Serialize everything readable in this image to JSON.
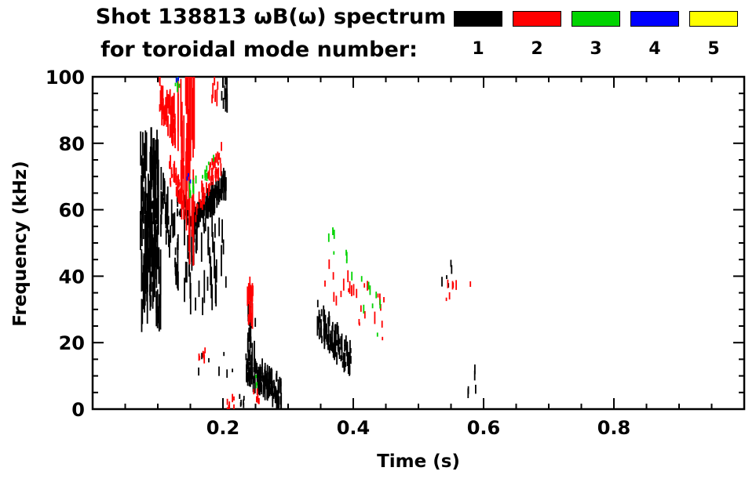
{
  "figure": {
    "background": "#ffffff"
  },
  "chart_data": {
    "type": "scatter",
    "title_line1": "Shot 138813 ωB(ω) spectrum",
    "title_line2": "for toroidal mode number:",
    "xlabel": "Time (s)",
    "ylabel": "Frequency (kHz)",
    "xlim": [
      0.0,
      1.0
    ],
    "ylim": [
      0,
      100
    ],
    "xticks": [
      0.2,
      0.4,
      0.6,
      0.8
    ],
    "xtick_labels": [
      "0.2",
      "0.4",
      "0.6",
      "0.8"
    ],
    "yticks": [
      0,
      20,
      40,
      60,
      80,
      100
    ],
    "ytick_labels": [
      "0",
      "20",
      "40",
      "60",
      "80",
      "100"
    ],
    "x_minor_step": 0.05,
    "y_minor_step": 5,
    "grid": false,
    "legend_position": "top-right",
    "legend": [
      {
        "label": "1",
        "color": "#000000"
      },
      {
        "label": "2",
        "color": "#ff0000"
      },
      {
        "label": "3",
        "color": "#00d400"
      },
      {
        "label": "4",
        "color": "#0000ff"
      },
      {
        "label": "5",
        "color": "#ffff00"
      }
    ],
    "clusters": [
      {
        "mode": 1,
        "t": [
          0.073,
          0.102
        ],
        "f": [
          52,
          80
        ],
        "n": 110,
        "dash": [
          2,
          12
        ],
        "trend": "flat",
        "spread": 0
      },
      {
        "mode": 1,
        "t": [
          0.075,
          0.105
        ],
        "f": [
          28,
          54
        ],
        "n": 70,
        "dash": [
          3,
          14
        ],
        "trend": "flat",
        "spread": 0
      },
      {
        "mode": 1,
        "t": [
          0.103,
          0.132
        ],
        "f": [
          45,
          64
        ],
        "n": 45,
        "dash": [
          2,
          8
        ],
        "trend": "down",
        "spread": 8
      },
      {
        "mode": 1,
        "t": [
          0.13,
          0.158
        ],
        "f": [
          57,
          62
        ],
        "n": 40,
        "dash": [
          1,
          4
        ],
        "trend": "down",
        "spread": 3
      },
      {
        "mode": 1,
        "t": [
          0.155,
          0.205
        ],
        "f": [
          57,
          68
        ],
        "n": 120,
        "dash": [
          1.5,
          6
        ],
        "trend": "up",
        "spread": 3
      },
      {
        "mode": 1,
        "t": [
          0.14,
          0.205
        ],
        "f": [
          30,
          56
        ],
        "n": 45,
        "dash": [
          3,
          12
        ],
        "trend": "flat",
        "spread": 0
      },
      {
        "mode": 1,
        "t": [
          0.16,
          0.215
        ],
        "f": [
          10,
          18
        ],
        "n": 7,
        "dash": [
          1,
          3
        ],
        "trend": "flat",
        "spread": 0
      },
      {
        "mode": 1,
        "t": [
          0.195,
          0.21
        ],
        "f": [
          92,
          100
        ],
        "n": 10,
        "dash": [
          2,
          6
        ],
        "trend": "flat",
        "spread": 0
      },
      {
        "mode": 1,
        "t": [
          0.235,
          0.29
        ],
        "f": [
          5,
          13
        ],
        "n": 140,
        "dash": [
          1.5,
          5
        ],
        "trend": "down",
        "spread": 4
      },
      {
        "mode": 1,
        "t": [
          0.238,
          0.252
        ],
        "f": [
          13,
          30
        ],
        "n": 22,
        "dash": [
          2,
          7
        ],
        "trend": "flat",
        "spread": 0
      },
      {
        "mode": 1,
        "t": [
          0.345,
          0.397
        ],
        "f": [
          14,
          27
        ],
        "n": 90,
        "dash": [
          1.5,
          6
        ],
        "trend": "down",
        "spread": 5
      },
      {
        "mode": 1,
        "t": [
          0.225,
          0.235
        ],
        "f": [
          0,
          4
        ],
        "n": 6,
        "dash": [
          1,
          2
        ],
        "trend": "flat",
        "spread": 0
      },
      {
        "mode": 1,
        "t": [
          0.535,
          0.555
        ],
        "f": [
          37,
          44
        ],
        "n": 5,
        "dash": [
          1,
          3
        ],
        "trend": "flat",
        "spread": 0
      },
      {
        "mode": 1,
        "t": [
          0.575,
          0.59
        ],
        "f": [
          4,
          13
        ],
        "n": 5,
        "dash": [
          1,
          3
        ],
        "trend": "flat",
        "spread": 0
      },
      {
        "mode": 2,
        "t": [
          0.102,
          0.128
        ],
        "f": [
          84,
          97
        ],
        "n": 45,
        "dash": [
          2,
          8
        ],
        "trend": "down",
        "spread": 6
      },
      {
        "mode": 2,
        "t": [
          0.131,
          0.145
        ],
        "f": [
          60,
          100
        ],
        "n": 25,
        "dash": [
          6,
          25
        ],
        "trend": "flat",
        "spread": 0
      },
      {
        "mode": 2,
        "t": [
          0.146,
          0.158
        ],
        "f": [
          55,
          100
        ],
        "n": 18,
        "dash": [
          10,
          40
        ],
        "trend": "flat",
        "spread": 0
      },
      {
        "mode": 2,
        "t": [
          0.183,
          0.192
        ],
        "f": [
          90,
          100
        ],
        "n": 6,
        "dash": [
          2,
          6
        ],
        "trend": "flat",
        "spread": 0
      },
      {
        "mode": 2,
        "t": [
          0.118,
          0.152
        ],
        "f": [
          59,
          72
        ],
        "n": 45,
        "dash": [
          1,
          4
        ],
        "trend": "down",
        "spread": 4
      },
      {
        "mode": 2,
        "t": [
          0.152,
          0.198
        ],
        "f": [
          59,
          76
        ],
        "n": 55,
        "dash": [
          1,
          4
        ],
        "trend": "up",
        "spread": 4
      },
      {
        "mode": 2,
        "t": [
          0.237,
          0.247
        ],
        "f": [
          24,
          38
        ],
        "n": 20,
        "dash": [
          2,
          8
        ],
        "trend": "flat",
        "spread": 0
      },
      {
        "mode": 2,
        "t": [
          0.35,
          0.45
        ],
        "f": [
          25,
          45
        ],
        "n": 26,
        "dash": [
          1,
          4
        ],
        "trend": "down",
        "spread": 8
      },
      {
        "mode": 2,
        "t": [
          0.54,
          0.585
        ],
        "f": [
          33,
          45
        ],
        "n": 7,
        "dash": [
          1,
          3
        ],
        "trend": "flat",
        "spread": 0
      },
      {
        "mode": 2,
        "t": [
          0.162,
          0.178
        ],
        "f": [
          13,
          18
        ],
        "n": 6,
        "dash": [
          1,
          3
        ],
        "trend": "flat",
        "spread": 0
      },
      {
        "mode": 2,
        "t": [
          0.205,
          0.225
        ],
        "f": [
          0,
          4
        ],
        "n": 7,
        "dash": [
          1,
          3
        ],
        "trend": "flat",
        "spread": 0
      },
      {
        "mode": 2,
        "t": [
          0.245,
          0.258
        ],
        "f": [
          2,
          6
        ],
        "n": 6,
        "dash": [
          1,
          2
        ],
        "trend": "flat",
        "spread": 0
      },
      {
        "mode": 3,
        "t": [
          0.148,
          0.186
        ],
        "f": [
          66,
          74
        ],
        "n": 16,
        "dash": [
          1,
          3
        ],
        "trend": "up",
        "spread": 2
      },
      {
        "mode": 3,
        "t": [
          0.36,
          0.445
        ],
        "f": [
          28,
          48
        ],
        "n": 16,
        "dash": [
          1,
          3
        ],
        "trend": "down",
        "spread": 8
      },
      {
        "mode": 3,
        "t": [
          0.127,
          0.14
        ],
        "f": [
          95,
          100
        ],
        "n": 4,
        "dash": [
          1,
          3
        ],
        "trend": "flat",
        "spread": 0
      },
      {
        "mode": 3,
        "t": [
          0.248,
          0.256
        ],
        "f": [
          6,
          10
        ],
        "n": 3,
        "dash": [
          1,
          2
        ],
        "trend": "flat",
        "spread": 0
      },
      {
        "mode": 4,
        "t": [
          0.143,
          0.15
        ],
        "f": [
          68,
          71
        ],
        "n": 3,
        "dash": [
          1,
          2
        ],
        "trend": "flat",
        "spread": 0
      },
      {
        "mode": 4,
        "t": [
          0.128,
          0.134
        ],
        "f": [
          97,
          100
        ],
        "n": 2,
        "dash": [
          1,
          2
        ],
        "trend": "flat",
        "spread": 0
      }
    ]
  }
}
